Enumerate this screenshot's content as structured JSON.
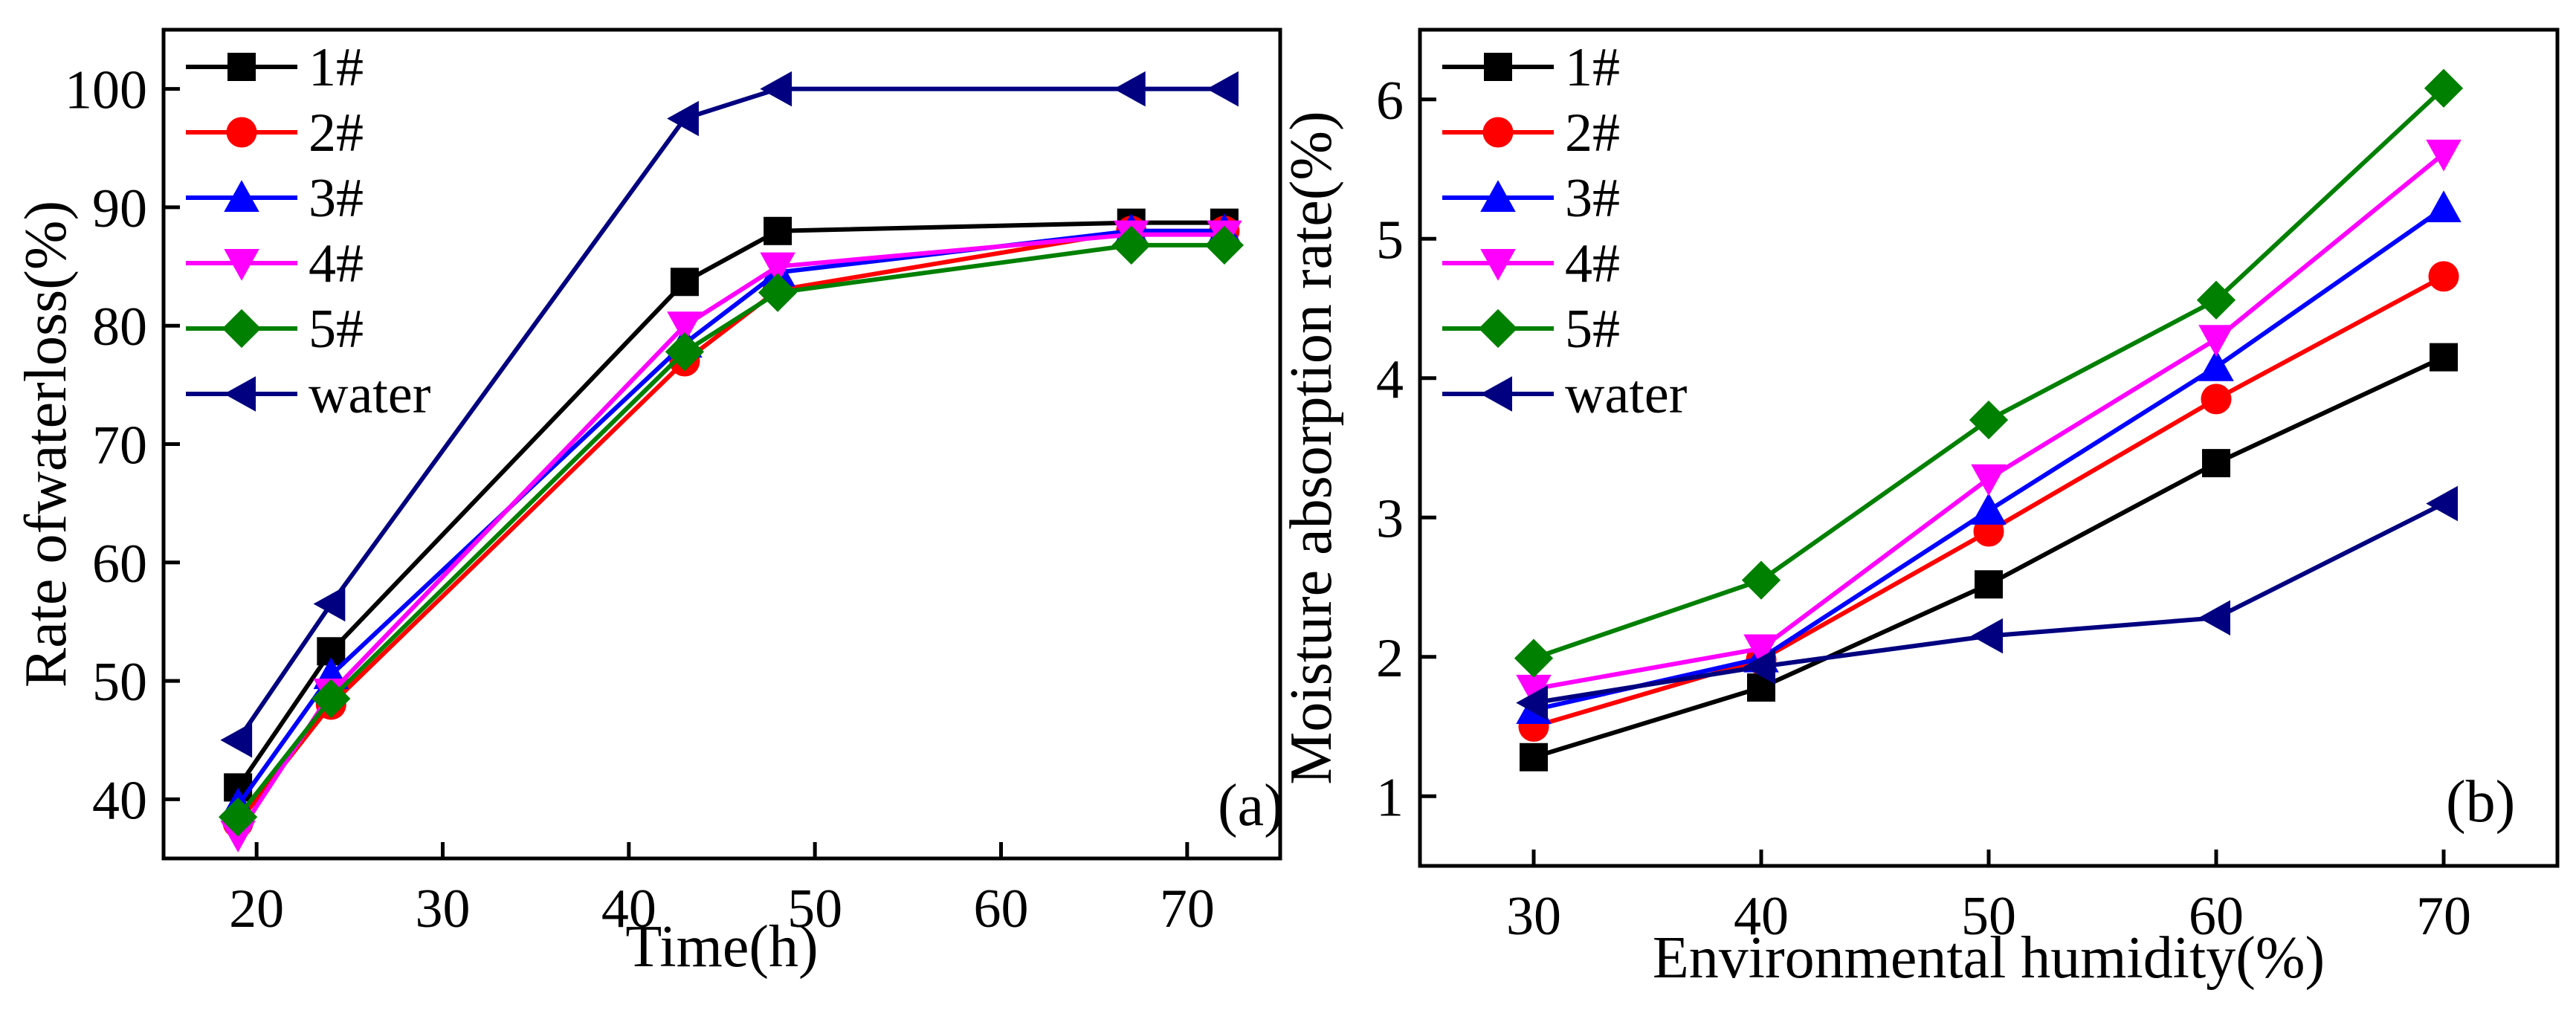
{
  "chart_data": [
    {
      "type": "line",
      "panel_label": "(a)",
      "title": "",
      "xlabel": "Time(h)",
      "ylabel": "Rate ofwaterloss(%)",
      "xlim": [
        15,
        75
      ],
      "ylim": [
        35,
        105
      ],
      "xticks": [
        20,
        30,
        40,
        50,
        60,
        70
      ],
      "yticks": [
        40,
        50,
        60,
        70,
        80,
        90,
        100
      ],
      "legend_position": "top-left",
      "x": [
        19,
        24,
        43,
        48,
        67,
        72
      ],
      "series": [
        {
          "name": "1#",
          "color": "#000000",
          "marker": "square",
          "values": [
            41.0,
            52.5,
            83.7,
            88.0,
            88.7,
            88.7
          ]
        },
        {
          "name": "2#",
          "color": "#ff0000",
          "marker": "circle",
          "values": [
            38.0,
            48.0,
            77.0,
            83.0,
            88.0,
            88.0
          ]
        },
        {
          "name": "3#",
          "color": "#0000ff",
          "marker": "triangle-up",
          "values": [
            39.5,
            50.5,
            78.5,
            84.5,
            88.0,
            88.0
          ]
        },
        {
          "name": "4#",
          "color": "#ff00ff",
          "marker": "triangle-down",
          "values": [
            37.0,
            49.0,
            80.0,
            85.0,
            87.7,
            87.7
          ]
        },
        {
          "name": "5#",
          "color": "#008000",
          "marker": "diamond",
          "values": [
            38.5,
            48.5,
            77.8,
            82.8,
            86.8,
            86.8
          ]
        },
        {
          "name": "water",
          "color": "#000080",
          "marker": "triangle-left",
          "values": [
            45.0,
            56.5,
            97.5,
            100.0,
            100.0,
            100.0
          ]
        }
      ]
    },
    {
      "type": "line",
      "panel_label": "(b)",
      "title": "",
      "xlabel": "Environmental humidity(%)",
      "ylabel": "Moisture absorption rate(%)",
      "xlim": [
        25,
        75
      ],
      "ylim": [
        0.5,
        6.5
      ],
      "xticks": [
        30,
        40,
        50,
        60,
        70
      ],
      "yticks": [
        1,
        2,
        3,
        4,
        5,
        6
      ],
      "legend_position": "top-left",
      "x": [
        30,
        40,
        50,
        60,
        70
      ],
      "series": [
        {
          "name": "1#",
          "color": "#000000",
          "marker": "square",
          "values": [
            1.28,
            1.78,
            2.52,
            3.39,
            4.15
          ]
        },
        {
          "name": "2#",
          "color": "#ff0000",
          "marker": "circle",
          "values": [
            1.5,
            1.98,
            2.9,
            3.85,
            4.73
          ]
        },
        {
          "name": "3#",
          "color": "#0000ff",
          "marker": "triangle-up",
          "values": [
            1.62,
            1.99,
            3.05,
            4.08,
            5.22
          ]
        },
        {
          "name": "4#",
          "color": "#ff00ff",
          "marker": "triangle-down",
          "values": [
            1.77,
            2.06,
            3.28,
            4.28,
            5.61
          ]
        },
        {
          "name": "5#",
          "color": "#008000",
          "marker": "diamond",
          "values": [
            1.99,
            2.55,
            3.7,
            4.56,
            6.08
          ]
        },
        {
          "name": "water",
          "color": "#000080",
          "marker": "triangle-left",
          "values": [
            1.67,
            1.93,
            2.15,
            2.28,
            3.1
          ]
        }
      ]
    }
  ]
}
